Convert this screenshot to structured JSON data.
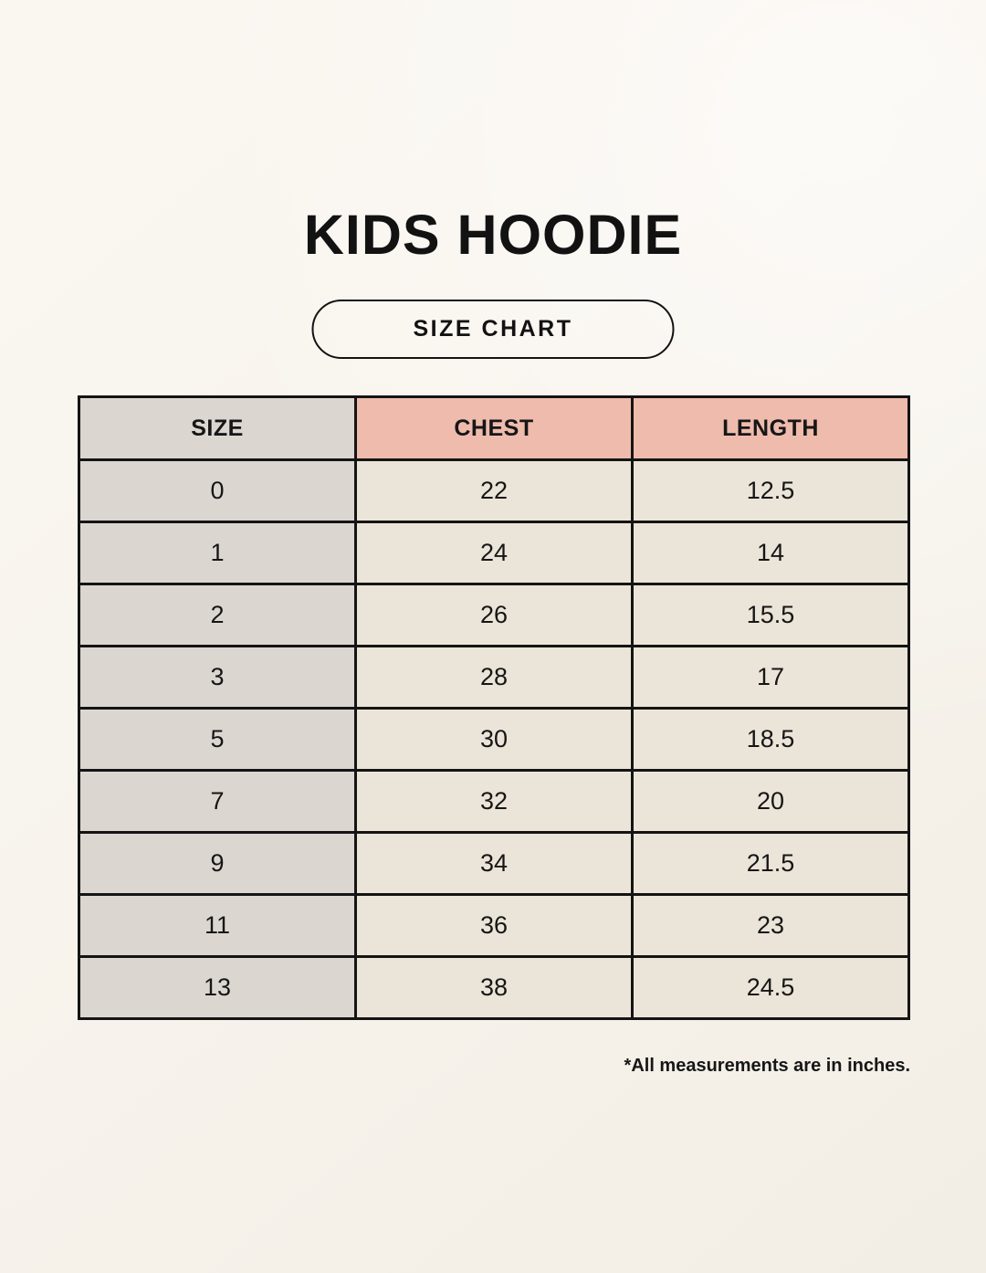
{
  "page": {
    "title": "KIDS HOODIE",
    "badge_label": "SIZE CHART",
    "footnote": "*All measurements are in inches."
  },
  "colors": {
    "background": "#f8f4ed",
    "header_pink": "#eebbad",
    "size_column_gray": "#dcd6d1",
    "cell_cream": "#ebe4d8",
    "border": "#141414",
    "text": "#121212"
  },
  "table": {
    "headers": [
      "SIZE",
      "CHEST",
      "LENGTH"
    ],
    "rows": [
      [
        "0",
        "22",
        "12.5"
      ],
      [
        "1",
        "24",
        "14"
      ],
      [
        "2",
        "26",
        "15.5"
      ],
      [
        "3",
        "28",
        "17"
      ],
      [
        "5",
        "30",
        "18.5"
      ],
      [
        "7",
        "32",
        "20"
      ],
      [
        "9",
        "34",
        "21.5"
      ],
      [
        "11",
        "36",
        "23"
      ],
      [
        "13",
        "38",
        "24.5"
      ]
    ]
  },
  "chart_data": {
    "type": "table",
    "title": "KIDS HOODIE",
    "subtitle": "SIZE CHART",
    "columns": [
      "SIZE",
      "CHEST",
      "LENGTH"
    ],
    "rows": [
      [
        0,
        22,
        12.5
      ],
      [
        1,
        24,
        14
      ],
      [
        2,
        26,
        15.5
      ],
      [
        3,
        28,
        17
      ],
      [
        5,
        30,
        18.5
      ],
      [
        7,
        32,
        20
      ],
      [
        9,
        34,
        21.5
      ],
      [
        11,
        36,
        23
      ],
      [
        13,
        38,
        24.5
      ]
    ],
    "units": "inches",
    "note": "*All measurements are in inches."
  }
}
